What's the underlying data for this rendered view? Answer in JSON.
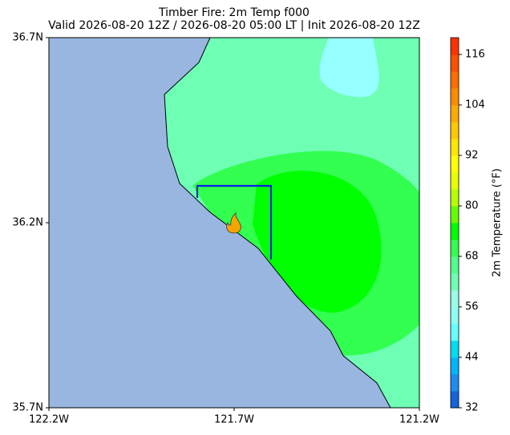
{
  "chart_data": {
    "type": "map",
    "title": "Timber Fire: 2m Temp f000",
    "subtitle": "Valid 2026-08-20 12Z / 2026-08-20 05:00 LT | Init 2026-08-20 12Z",
    "xlim": [
      -122.2,
      -121.2
    ],
    "xticks": [
      {
        "value": -122.2,
        "label": "122.2W"
      },
      {
        "value": -121.7,
        "label": "121.7W"
      },
      {
        "value": -121.2,
        "label": "121.2W"
      }
    ],
    "ylim": [
      35.7,
      36.7
    ],
    "yticks": [
      {
        "value": 35.7,
        "label": "35.7N"
      },
      {
        "value": 36.2,
        "label": "36.2N"
      },
      {
        "value": 36.7,
        "label": "36.7N"
      }
    ],
    "colorbar": {
      "label": "2m Temperature (°F)",
      "lim": [
        32,
        120
      ],
      "ticks": [
        32,
        44,
        56,
        68,
        80,
        92,
        104,
        116
      ],
      "colors": [
        "#1464dc",
        "#1e8cf0",
        "#00b4ff",
        "#00dcf0",
        "#64ffff",
        "#8cfff5",
        "#96ffe6",
        "#6effb4",
        "#50ff8c",
        "#32ff50",
        "#00ff00",
        "#64ff00",
        "#b4ff00",
        "#e6ff00",
        "#ffff00",
        "#ffe600",
        "#ffc800",
        "#ffaa00",
        "#ff8c00",
        "#ff6e00",
        "#ff5000",
        "#ff3200"
      ]
    }
  }
}
